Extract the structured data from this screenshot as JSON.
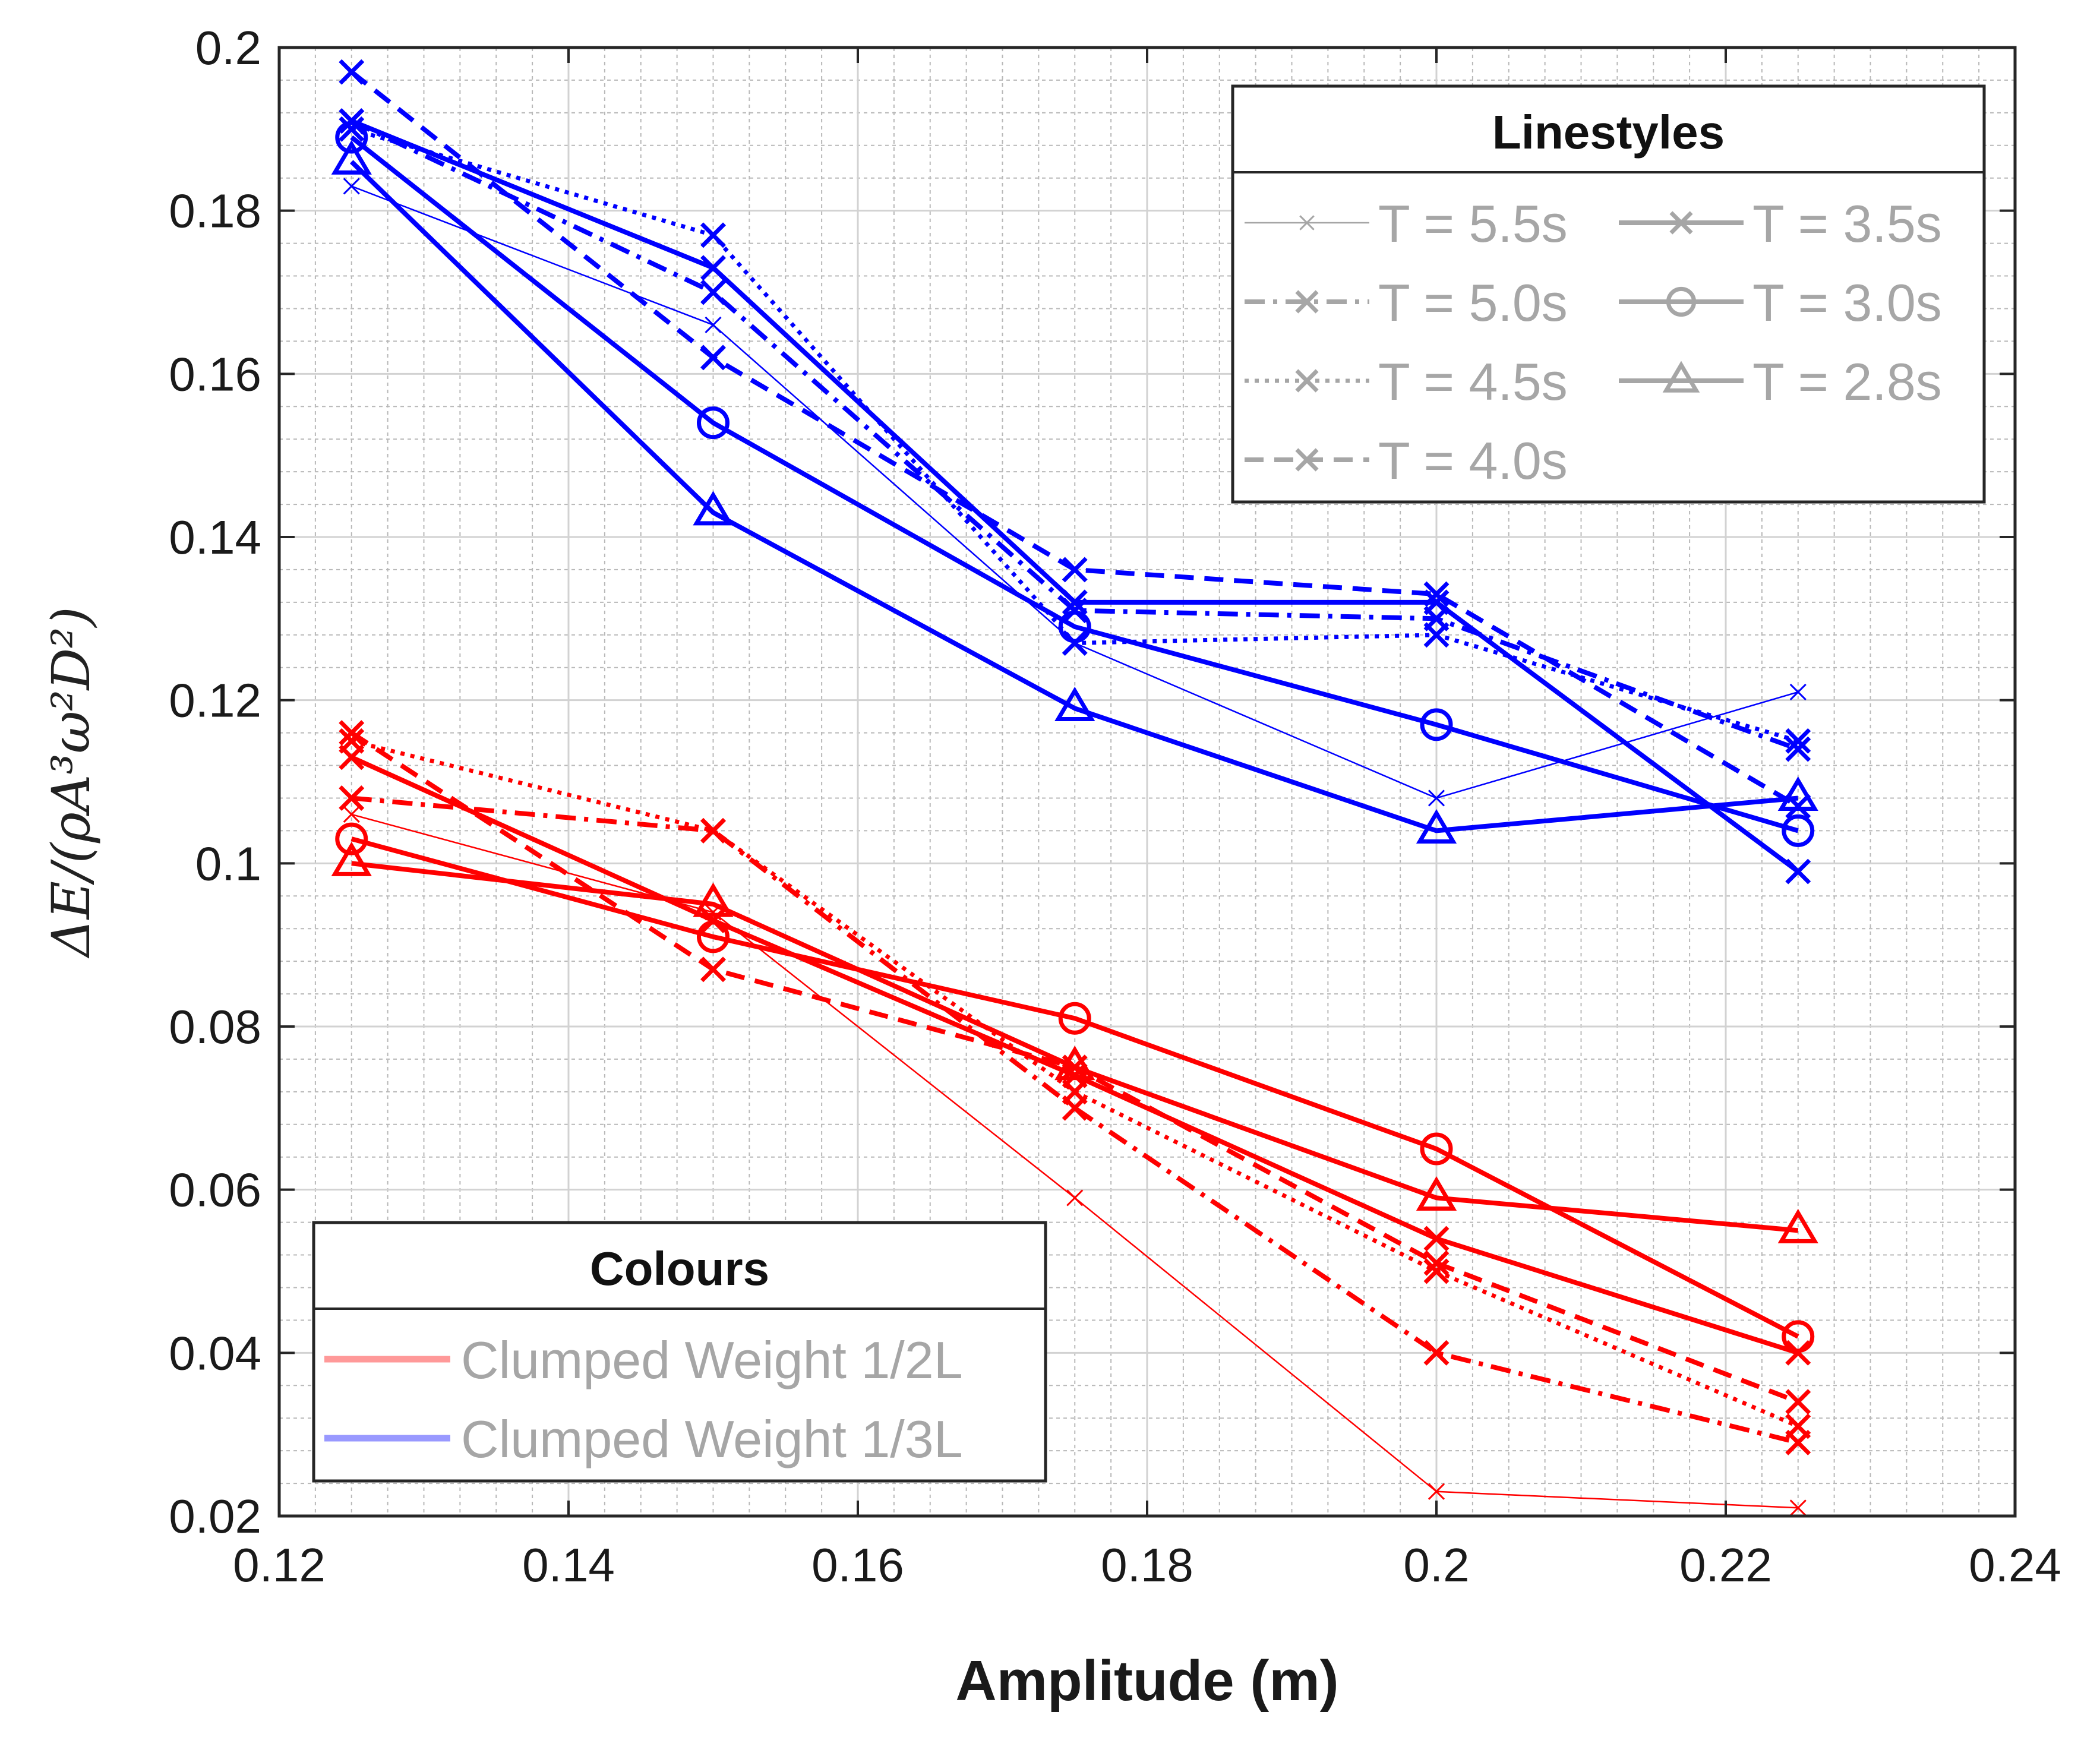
{
  "chart_data": {
    "type": "line",
    "xlabel": "Amplitude (m)",
    "ylabel": "ΔE/(ρA³ω²D²)",
    "xlim": [
      0.12,
      0.24
    ],
    "ylim": [
      0.02,
      0.2
    ],
    "xticks": [
      0.12,
      0.14,
      0.16,
      0.18,
      0.2,
      0.22,
      0.24
    ],
    "xtick_labels": [
      "0.12",
      "0.14",
      "0.16",
      "0.18",
      "0.2",
      "0.22",
      "0.24"
    ],
    "yticks": [
      0.02,
      0.04,
      0.06,
      0.08,
      0.1,
      0.12,
      0.14,
      0.16,
      0.18,
      0.2
    ],
    "ytick_labels": [
      "0.02",
      "0.04",
      "0.06",
      "0.08",
      "0.1",
      "0.12",
      "0.14",
      "0.16",
      "0.18",
      "0.2"
    ],
    "grid": true,
    "minor_grid": true,
    "x": [
      0.125,
      0.15,
      0.175,
      0.2,
      0.225
    ],
    "colors": {
      "half": "#ff0000",
      "third": "#0000ff",
      "legend_half": "#ff9999",
      "legend_third": "#9999ff",
      "legend_grey": "#a6a6a6"
    },
    "linestyles_legend": {
      "title": "Linestyles",
      "placement": "top-right",
      "entries": [
        {
          "label": "T = 5.5s",
          "style": "thin-x"
        },
        {
          "label": "T = 5.0s",
          "style": "dashdot-x"
        },
        {
          "label": "T = 4.5s",
          "style": "dotted-x"
        },
        {
          "label": "T = 4.0s",
          "style": "dashed-x"
        },
        {
          "label": "T = 3.5s",
          "style": "solid-x"
        },
        {
          "label": "T = 3.0s",
          "style": "solid-circle"
        },
        {
          "label": "T = 2.8s",
          "style": "solid-triangle"
        }
      ]
    },
    "colours_legend": {
      "title": "Colours",
      "placement": "bottom-left",
      "entries": [
        {
          "label": "Clumped Weight 1/2L",
          "color": "#ff9999"
        },
        {
          "label": "Clumped Weight 1/3L",
          "color": "#9999ff"
        }
      ]
    },
    "series": [
      {
        "name": "1/3L T = 5.5s",
        "group": "third",
        "style": "thin-x",
        "values": [
          0.183,
          0.166,
          0.127,
          0.108,
          0.121
        ]
      },
      {
        "name": "1/3L T = 5.0s",
        "group": "third",
        "style": "dashdot-x",
        "values": [
          0.191,
          0.17,
          0.131,
          0.13,
          0.114
        ]
      },
      {
        "name": "1/3L T = 4.5s",
        "group": "third",
        "style": "dotted-x",
        "values": [
          0.19,
          0.177,
          0.127,
          0.128,
          0.115
        ]
      },
      {
        "name": "1/3L T = 4.0s",
        "group": "third",
        "style": "dashed-x",
        "values": [
          0.197,
          0.162,
          0.136,
          0.133,
          0.107
        ]
      },
      {
        "name": "1/3L T = 3.5s",
        "group": "third",
        "style": "solid-x",
        "values": [
          0.191,
          0.173,
          0.132,
          0.132,
          0.099
        ]
      },
      {
        "name": "1/3L T = 3.0s",
        "group": "third",
        "style": "solid-circle",
        "values": [
          0.189,
          0.154,
          0.129,
          0.117,
          0.104
        ]
      },
      {
        "name": "1/3L T = 2.8s",
        "group": "third",
        "style": "solid-triangle",
        "values": [
          0.186,
          0.143,
          0.119,
          0.104,
          0.108
        ]
      },
      {
        "name": "1/2L T = 5.5s",
        "group": "half",
        "style": "thin-x",
        "values": [
          0.106,
          0.094,
          0.059,
          0.023,
          0.021
        ]
      },
      {
        "name": "1/2L T = 5.0s",
        "group": "half",
        "style": "dashdot-x",
        "values": [
          0.108,
          0.104,
          0.07,
          0.04,
          0.029
        ]
      },
      {
        "name": "1/2L T = 4.5s",
        "group": "half",
        "style": "dotted-x",
        "values": [
          0.115,
          0.104,
          0.072,
          0.05,
          0.031
        ]
      },
      {
        "name": "1/2L T = 4.0s",
        "group": "half",
        "style": "dashed-x",
        "values": [
          0.116,
          0.087,
          0.075,
          0.051,
          0.034
        ]
      },
      {
        "name": "1/2L T = 3.5s",
        "group": "half",
        "style": "solid-x",
        "values": [
          0.113,
          0.093,
          0.074,
          0.054,
          0.04
        ]
      },
      {
        "name": "1/2L T = 3.0s",
        "group": "half",
        "style": "solid-circle",
        "values": [
          0.103,
          0.091,
          0.081,
          0.065,
          0.042
        ]
      },
      {
        "name": "1/2L T = 2.8s",
        "group": "half",
        "style": "solid-triangle",
        "values": [
          0.1,
          0.095,
          0.075,
          0.059,
          0.055
        ]
      }
    ]
  }
}
